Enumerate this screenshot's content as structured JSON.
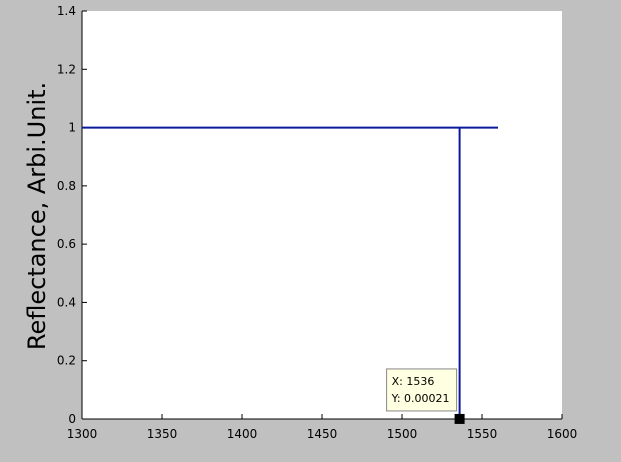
{
  "figure": {
    "background_color": "#c0c0c0",
    "plot_background_color": "#ffffff",
    "line_color": "#0a1a9a"
  },
  "chart_data": {
    "type": "line",
    "title": "",
    "xlabel": "",
    "ylabel": "Reflectance, Arbi.Unit.",
    "xlim": [
      1300,
      1600
    ],
    "ylim": [
      0,
      1.4
    ],
    "xticks": [
      1300,
      1350,
      1400,
      1450,
      1500,
      1550,
      1600
    ],
    "xtick_labels": [
      "1300",
      "1350",
      "1400",
      "1450",
      "1500",
      "1550",
      "1600"
    ],
    "yticks": [
      0,
      0.2,
      0.4,
      0.6,
      0.8,
      1,
      1.2,
      1.4
    ],
    "ytick_labels": [
      "0",
      "0.2",
      "0.4",
      "0.6",
      "0.8",
      "1",
      "1.2",
      "1.4"
    ],
    "grid": false,
    "legend": "none",
    "series": [
      {
        "x": [
          1300,
          1536,
          1536,
          1536,
          1560
        ],
        "y": [
          1,
          1,
          0.00021,
          1,
          1
        ]
      }
    ],
    "datatip": {
      "x": 1536,
      "y": 0.00021,
      "x_text": "X: 1536",
      "y_text": "Y: 0.00021"
    }
  }
}
